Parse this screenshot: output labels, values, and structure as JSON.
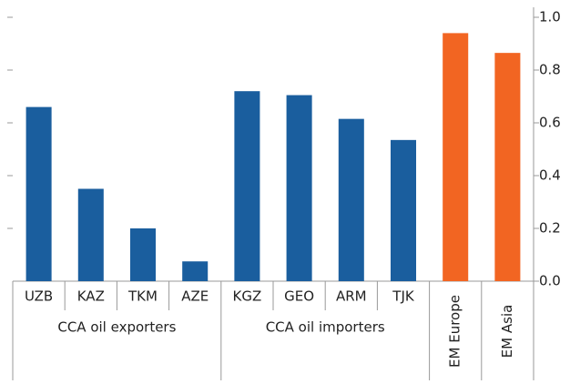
{
  "chart_data": {
    "type": "bar",
    "categories": [
      "UZB",
      "KAZ",
      "TKM",
      "AZE",
      "KGZ",
      "GEO",
      "ARM",
      "TJK",
      "EM Europe",
      "EM Asia"
    ],
    "values": [
      0.66,
      0.35,
      0.2,
      0.075,
      0.72,
      0.705,
      0.615,
      0.535,
      0.94,
      0.865
    ],
    "colors": [
      "#1a5e9e",
      "#1a5e9e",
      "#1a5e9e",
      "#1a5e9e",
      "#1a5e9e",
      "#1a5e9e",
      "#1a5e9e",
      "#1a5e9e",
      "#f26522",
      "#f26522"
    ],
    "groups": [
      {
        "name": "CCA oil exporters",
        "categories": [
          "UZB",
          "KAZ",
          "TKM",
          "AZE"
        ]
      },
      {
        "name": "CCA oil importers",
        "categories": [
          "KGZ",
          "GEO",
          "ARM",
          "TJK"
        ]
      }
    ],
    "ylim": [
      0,
      1
    ],
    "yticks": [
      {
        "value": 0,
        "label": "0.0"
      },
      0.2,
      0.4,
      0.6,
      0.8,
      {
        "value": 1,
        "label": "1.0"
      }
    ],
    "yaxis_side": "right"
  }
}
